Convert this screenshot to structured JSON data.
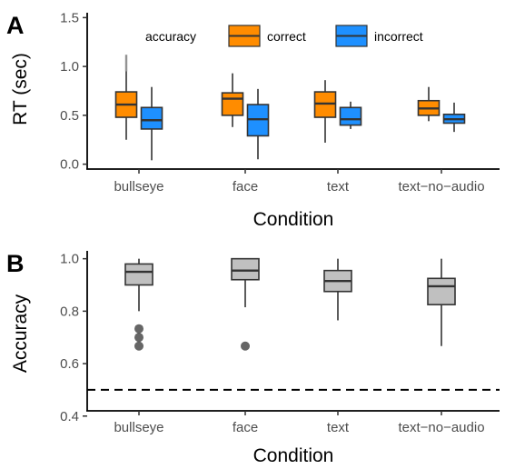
{
  "chart_data": [
    {
      "panel": "A",
      "type": "box",
      "xlabel": "Condition",
      "ylabel": "RT (sec)",
      "ylim": [
        -0.05,
        1.55
      ],
      "yticks": [
        0.0,
        0.5,
        1.0,
        1.5
      ],
      "ytick_labels": [
        "0.0",
        "0.5",
        "1.0",
        "1.5"
      ],
      "categories": [
        "bullseye",
        "face",
        "text",
        "text−no−audio"
      ],
      "legend": {
        "title": "accuracy",
        "placement": "top",
        "entries": [
          {
            "label": "correct",
            "color": "#FF8C00"
          },
          {
            "label": "incorrect",
            "color": "#1E90FF"
          }
        ]
      },
      "series": [
        {
          "name": "correct",
          "color": "#FF8C00",
          "boxes": [
            {
              "lower": 0.25,
              "q1": 0.48,
              "median": 0.61,
              "q3": 0.74,
              "upper": 1.12,
              "upper_outliers_from": 0.95
            },
            {
              "lower": 0.38,
              "q1": 0.5,
              "median": 0.67,
              "q3": 0.73,
              "upper": 0.93
            },
            {
              "lower": 0.22,
              "q1": 0.48,
              "median": 0.62,
              "q3": 0.74,
              "upper": 0.86
            },
            {
              "lower": 0.44,
              "q1": 0.5,
              "median": 0.57,
              "q3": 0.65,
              "upper": 0.79
            }
          ]
        },
        {
          "name": "incorrect",
          "color": "#1E90FF",
          "boxes": [
            {
              "lower": 0.04,
              "q1": 0.36,
              "median": 0.45,
              "q3": 0.58,
              "upper": 0.79
            },
            {
              "lower": 0.05,
              "q1": 0.29,
              "median": 0.46,
              "q3": 0.61,
              "upper": 0.77
            },
            {
              "lower": 0.36,
              "q1": 0.4,
              "median": 0.46,
              "q3": 0.58,
              "upper": 0.64
            },
            {
              "lower": 0.33,
              "q1": 0.42,
              "median": 0.46,
              "q3": 0.51,
              "upper": 0.63
            }
          ]
        }
      ]
    },
    {
      "panel": "B",
      "type": "box",
      "xlabel": "Condition",
      "ylabel": "Accuracy",
      "ylim": [
        0.42,
        1.03
      ],
      "yticks": [
        0.4,
        0.6,
        0.8,
        1.0
      ],
      "ytick_labels": [
        "0.4",
        "0.6",
        "0.8",
        "1.0"
      ],
      "categories": [
        "bullseye",
        "face",
        "text",
        "text−no−audio"
      ],
      "fill_color": "#C0C0C0",
      "reference_line": {
        "y": 0.5,
        "style": "dashed"
      },
      "boxes": [
        {
          "lower": 0.8,
          "q1": 0.9,
          "median": 0.95,
          "q3": 0.98,
          "upper": 1.0,
          "outliers": [
            0.667,
            0.7,
            0.733
          ]
        },
        {
          "lower": 0.815,
          "q1": 0.92,
          "median": 0.955,
          "q3": 1.0,
          "upper": 1.0,
          "outliers": [
            0.667
          ]
        },
        {
          "lower": 0.765,
          "q1": 0.875,
          "median": 0.915,
          "q3": 0.955,
          "upper": 1.0
        },
        {
          "lower": 0.667,
          "q1": 0.825,
          "median": 0.895,
          "q3": 0.925,
          "upper": 1.0
        }
      ]
    }
  ]
}
